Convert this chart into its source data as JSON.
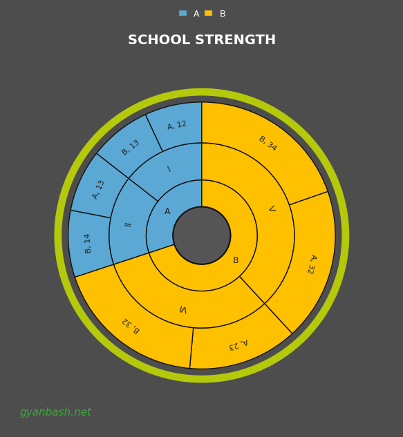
{
  "title": "SCHOOL STRENGTH",
  "bg": "#4d4d4d",
  "blue": "#5ba8d4",
  "gold": "#FFC000",
  "ec": "#111111",
  "hole_color": "#555555",
  "glow": "#c8e000",
  "text_color": "#222222",
  "r_hole": 0.155,
  "r1": 0.3,
  "r2": 0.5,
  "r3": 0.72,
  "r_glow": 0.755,
  "start_angle": 90,
  "groups": [
    {
      "label": "A",
      "color": "#5ba8d4",
      "classes": [
        {
          "label": "I",
          "sections": [
            {
              "name": "A",
              "val": 12
            },
            {
              "name": "B",
              "val": 13
            }
          ]
        },
        {
          "label": "II",
          "sections": [
            {
              "name": "A",
              "val": 13
            },
            {
              "name": "B",
              "val": 14
            }
          ]
        }
      ]
    },
    {
      "label": "B",
      "color": "#FFC000",
      "classes": [
        {
          "label": "V",
          "sections": [
            {
              "name": "B",
              "val": 34
            },
            {
              "name": "A",
              "val": 32
            }
          ]
        },
        {
          "label": "VI",
          "sections": [
            {
              "name": "A",
              "val": 23
            },
            {
              "name": "B",
              "val": 32
            }
          ]
        }
      ]
    }
  ],
  "legend_labels": [
    "A",
    "B"
  ],
  "legend_colors": [
    "#5ba8d4",
    "#FFC000"
  ],
  "watermark": "gyanbash.net",
  "watermark_color": "#3aaa35",
  "title_color": "#ffffff",
  "label_fontsize": 8,
  "title_fontsize": 14
}
